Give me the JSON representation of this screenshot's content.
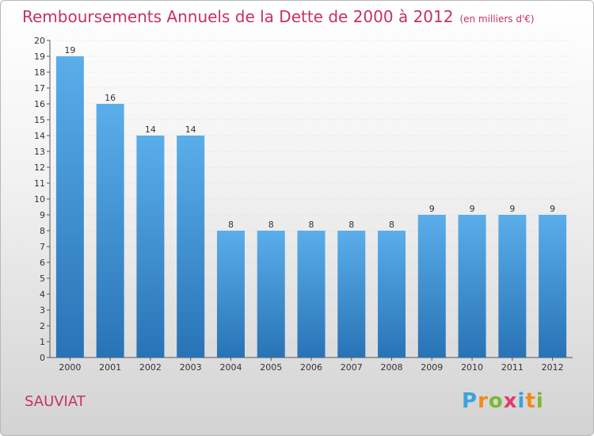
{
  "title": "Remboursements Annuels de la Dette de 2000 à 2012",
  "unit_note": "(en milliers d'€)",
  "commune": "SAUVIAT",
  "logo": {
    "text": "Proxiti",
    "letters": [
      {
        "ch": "P",
        "color": "#3aa3df"
      },
      {
        "ch": "r",
        "color": "#f08a1c"
      },
      {
        "ch": "o",
        "color": "#7ab836"
      },
      {
        "ch": "x",
        "color": "#e23a6d"
      },
      {
        "ch": "i",
        "color": "#3aa3df"
      },
      {
        "ch": "t",
        "color": "#f08a1c"
      },
      {
        "ch": "i",
        "color": "#7ab836"
      }
    ]
  },
  "colors": {
    "title": "#c7325c",
    "bar_top": "#5aaeea",
    "bar_bottom": "#2873b6",
    "axis": "#555555",
    "grid": "#bbbbbb"
  },
  "chart_data": {
    "type": "bar",
    "title": "Remboursements Annuels de la Dette de 2000 à 2012",
    "xlabel": "",
    "ylabel": "",
    "categories": [
      "2000",
      "2001",
      "2002",
      "2003",
      "2004",
      "2005",
      "2006",
      "2007",
      "2008",
      "2009",
      "2010",
      "2011",
      "2012"
    ],
    "values": [
      19,
      16,
      14,
      14,
      8,
      8,
      8,
      8,
      8,
      9,
      9,
      9,
      9
    ],
    "ylim": [
      0,
      20
    ],
    "yticks": [
      0,
      1,
      2,
      3,
      4,
      5,
      6,
      7,
      8,
      9,
      10,
      11,
      12,
      13,
      14,
      15,
      16,
      17,
      18,
      19,
      20
    ],
    "grid": true,
    "legend": "none"
  }
}
